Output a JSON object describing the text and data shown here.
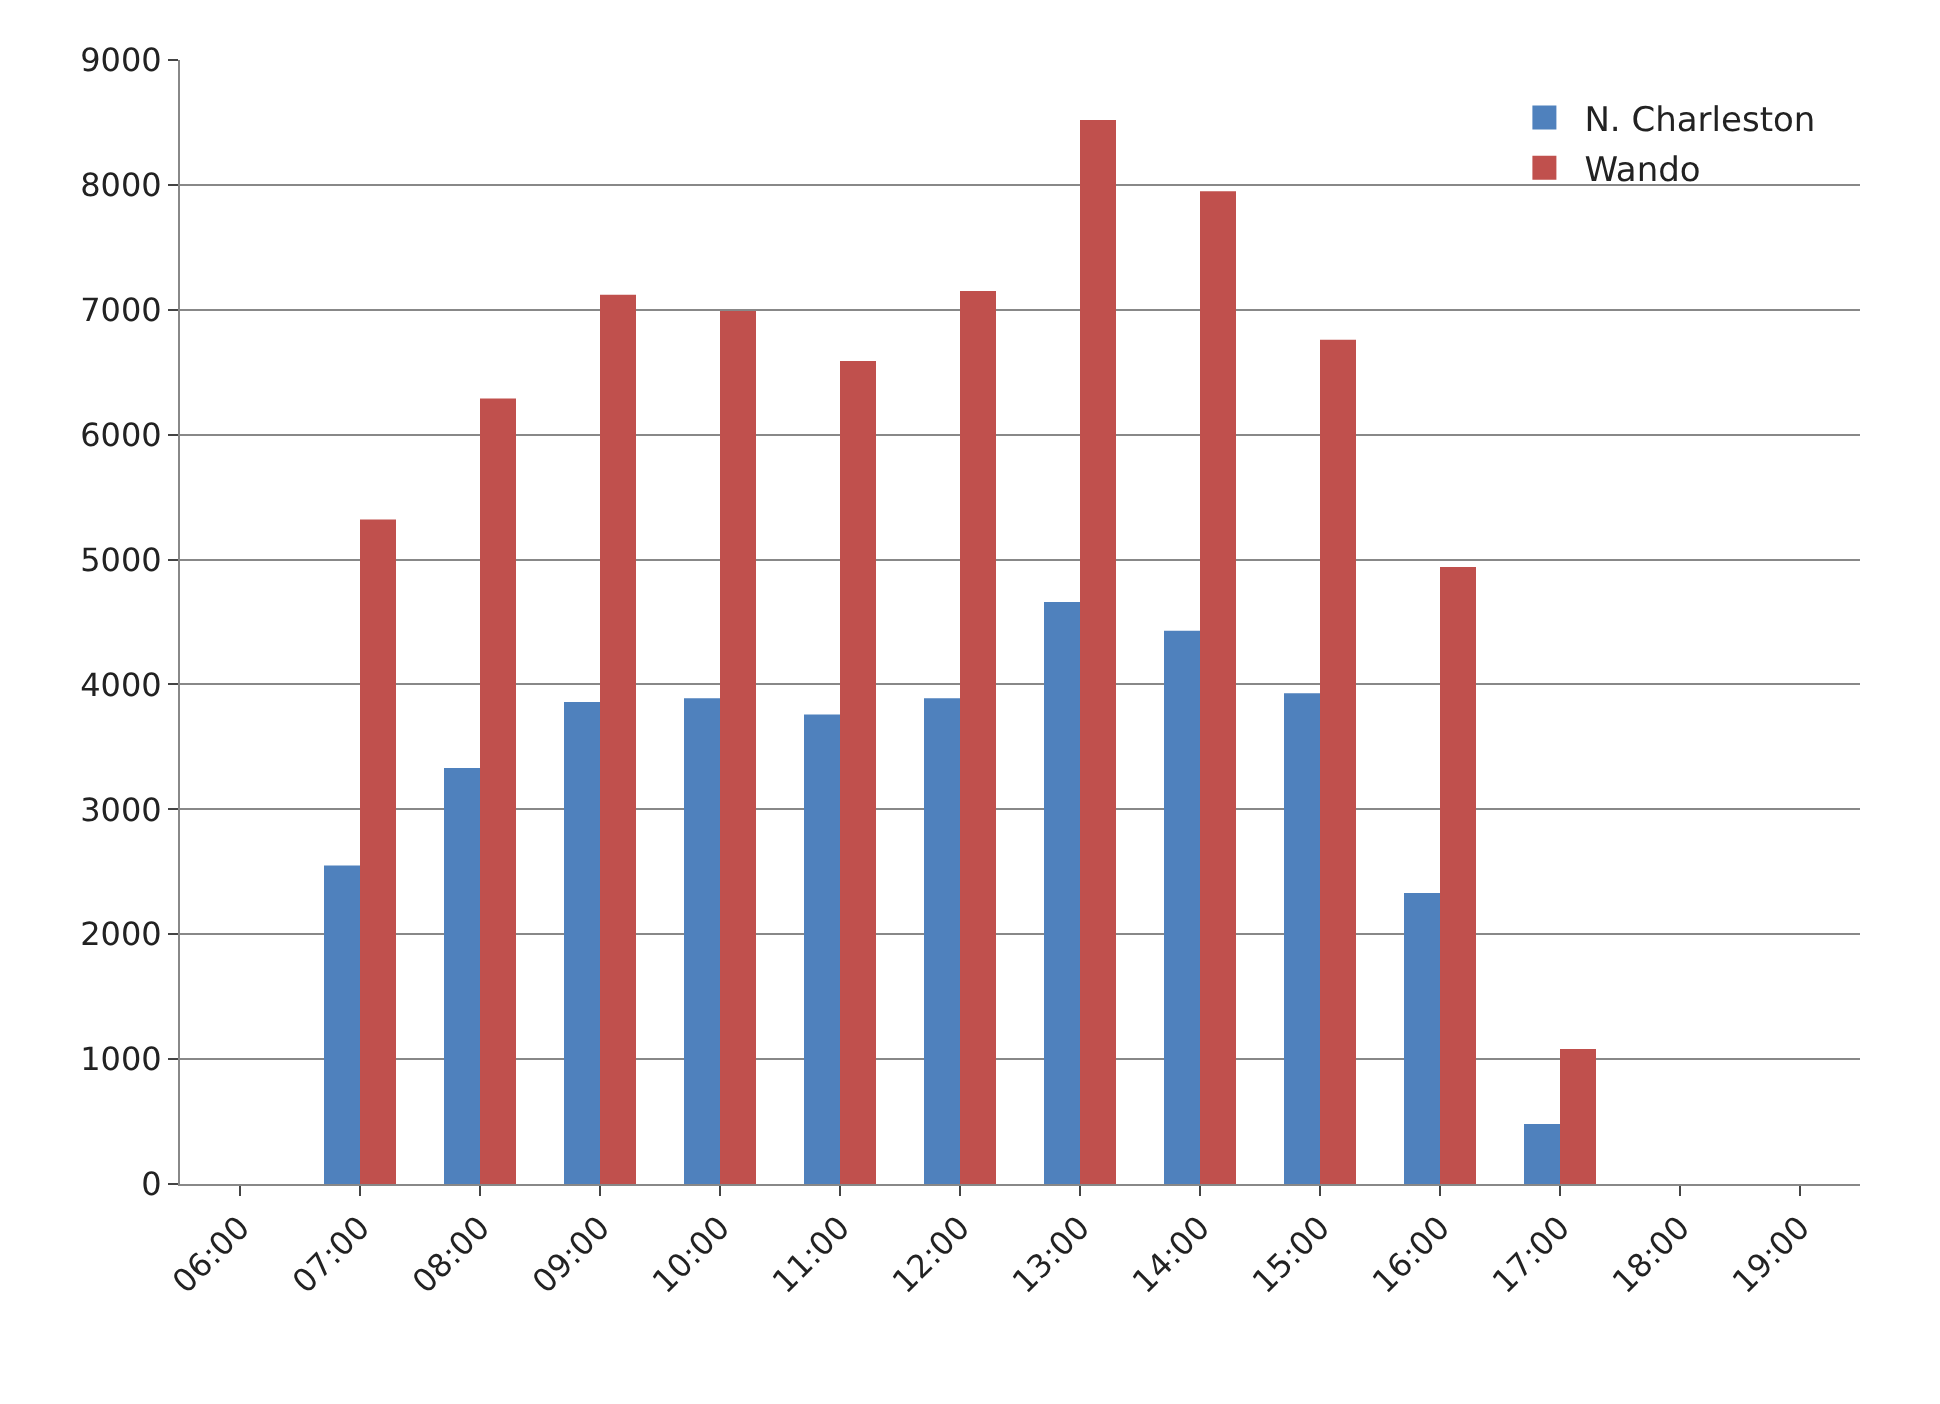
{
  "chart_data": {
    "type": "bar",
    "categories": [
      "06:00",
      "07:00",
      "08:00",
      "09:00",
      "10:00",
      "11:00",
      "12:00",
      "13:00",
      "14:00",
      "15:00",
      "16:00",
      "17:00",
      "18:00",
      "19:00"
    ],
    "series": [
      {
        "name": "N. Charleston",
        "color": "#4f81bd",
        "values": [
          null,
          2550,
          3330,
          3860,
          3890,
          3760,
          3890,
          4660,
          4430,
          3930,
          2330,
          480,
          null,
          null
        ]
      },
      {
        "name": "Wando",
        "color": "#c0504d",
        "values": [
          null,
          5320,
          6290,
          7120,
          6990,
          6590,
          7150,
          8520,
          7950,
          6760,
          4940,
          1080,
          null,
          null
        ]
      }
    ],
    "ylim": [
      0,
      9000
    ],
    "yticks": [
      0,
      1000,
      2000,
      3000,
      4000,
      5000,
      6000,
      7000,
      8000,
      9000
    ],
    "grid": "y",
    "legend": "top right"
  }
}
